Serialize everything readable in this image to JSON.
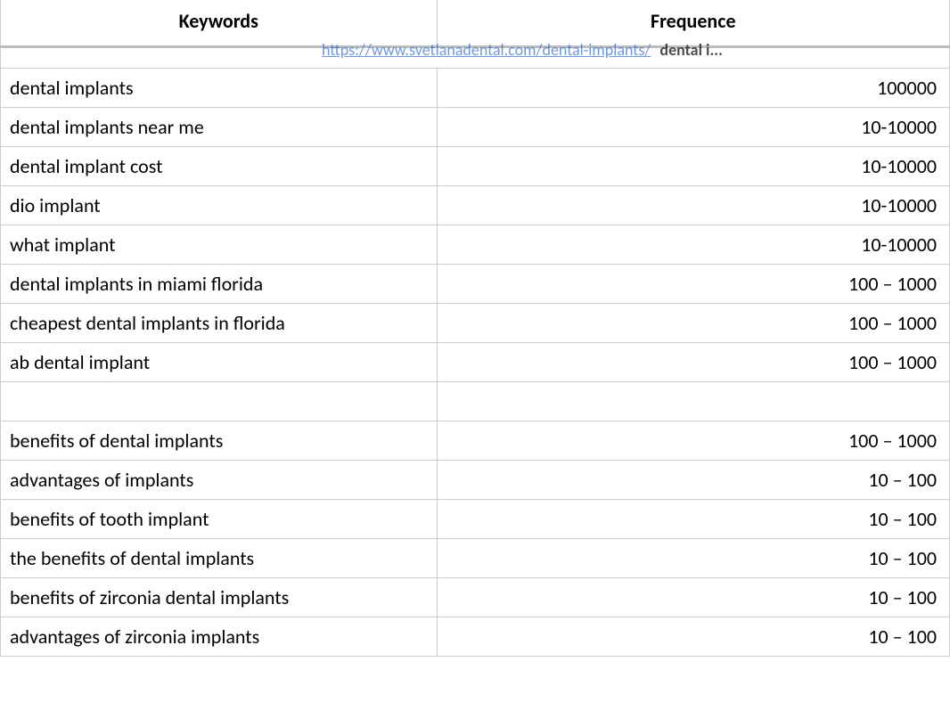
{
  "columns": {
    "keywords": "Keywords",
    "frequence": "Frequence"
  },
  "link_row": {
    "url_text": "https://www.svetlanadental.com/dental-implants/",
    "trailing": "dental i..."
  },
  "rows": [
    {
      "keyword": "dental implants",
      "freq": "100000"
    },
    {
      "keyword": "dental implants near me",
      "freq": "10-10000"
    },
    {
      "keyword": "dental implant cost",
      "freq": "10-10000"
    },
    {
      "keyword": "dio implant",
      "freq": "10-10000"
    },
    {
      "keyword": "what implant",
      "freq": "10-10000"
    },
    {
      "keyword": "dental implants in miami florida",
      "freq": "100 – 1000"
    },
    {
      "keyword": "cheapest dental implants in florida",
      "freq": "100 – 1000"
    },
    {
      "keyword": "ab dental implant",
      "freq": "100 – 1000"
    },
    {
      "keyword": "",
      "freq": ""
    },
    {
      "keyword": "benefits of dental implants",
      "freq": "100 – 1000"
    },
    {
      "keyword": "advantages of implants",
      "freq": "10 – 100"
    },
    {
      "keyword": "benefits of tooth implant",
      "freq": "10 – 100"
    },
    {
      "keyword": "the benefits of dental implants",
      "freq": "10 – 100"
    },
    {
      "keyword": "benefits of zirconia dental implants",
      "freq": "10 – 100"
    },
    {
      "keyword": "advantages of zirconia implants",
      "freq": "10 – 100"
    }
  ],
  "style": {
    "header_fontsize": 22,
    "cell_fontsize": 22,
    "border_color": "#cccccc",
    "link_color": "#1155cc",
    "text_color": "#000000",
    "background_color": "#ffffff",
    "thick_border_color": "#bdbdbd",
    "col_widths": {
      "keywords": 490,
      "frequence": 576
    }
  }
}
